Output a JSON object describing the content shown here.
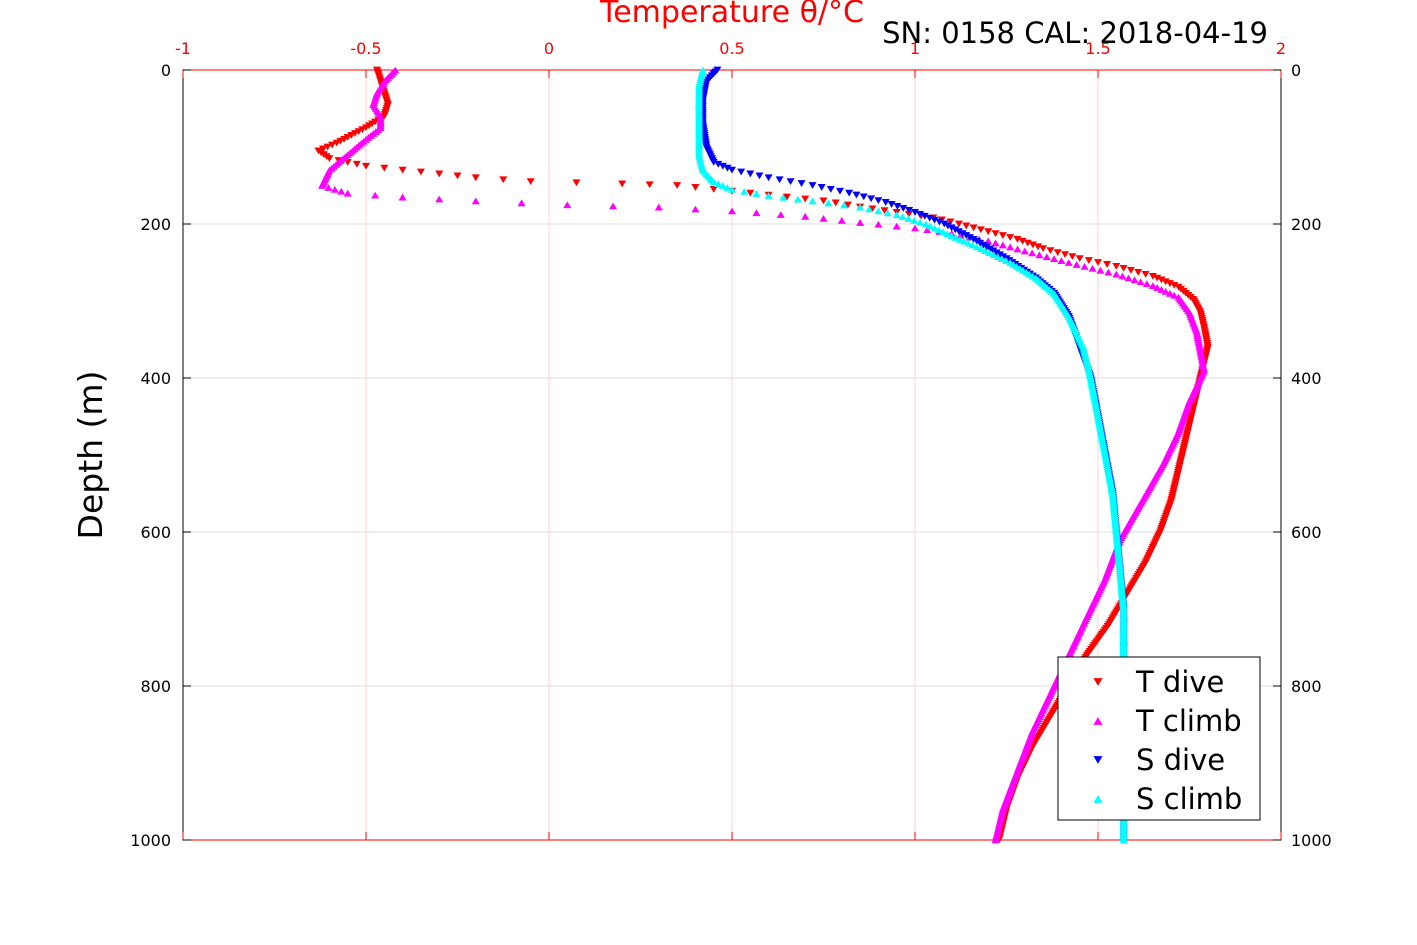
{
  "chart_data": {
    "type": "scatter",
    "title": "Temperature θ/°C",
    "corner_label": "SN: 0158  CAL: 2018-04-19",
    "xlabel": "Temperature θ/°C",
    "ylabel": "Depth (m)",
    "xlim": [
      -1,
      2
    ],
    "ylim": [
      0,
      1000
    ],
    "y_inverted": true,
    "x_axis_position": "top",
    "y_axis_mirrored": "left and right",
    "grid": true,
    "legend_position": "bottom-right",
    "x_ticks": [
      "-1",
      "-0.5",
      "0",
      "0.5",
      "1",
      "1.5",
      "2"
    ],
    "y_ticks": [
      "0",
      "200",
      "400",
      "600",
      "800",
      "1000"
    ],
    "colors": {
      "axis_top": "#ff0000",
      "grid": "#dcdcdc",
      "grid_x": "#ffd0d0"
    },
    "series": [
      {
        "name": "T dive",
        "marker": "triangle-down",
        "color": "#ff0000",
        "points": [
          [
            -0.47,
            0
          ],
          [
            -0.46,
            15
          ],
          [
            -0.45,
            30
          ],
          [
            -0.44,
            45
          ],
          [
            -0.45,
            60
          ],
          [
            -0.5,
            75
          ],
          [
            -0.54,
            85
          ],
          [
            -0.58,
            95
          ],
          [
            -0.63,
            105
          ],
          [
            -0.6,
            115
          ],
          [
            -0.5,
            125
          ],
          [
            -0.4,
            130
          ],
          [
            -0.3,
            135
          ],
          [
            -0.2,
            140
          ],
          [
            -0.05,
            145
          ],
          [
            0.2,
            148
          ],
          [
            0.35,
            150
          ],
          [
            0.45,
            155
          ],
          [
            0.55,
            160
          ],
          [
            0.65,
            165
          ],
          [
            0.75,
            170
          ],
          [
            0.85,
            178
          ],
          [
            0.95,
            185
          ],
          [
            1.05,
            192
          ],
          [
            1.12,
            200
          ],
          [
            1.2,
            210
          ],
          [
            1.28,
            220
          ],
          [
            1.35,
            232
          ],
          [
            1.45,
            245
          ],
          [
            1.55,
            255
          ],
          [
            1.65,
            268
          ],
          [
            1.72,
            282
          ],
          [
            1.76,
            298
          ],
          [
            1.78,
            315
          ],
          [
            1.79,
            335
          ],
          [
            1.8,
            360
          ],
          [
            1.78,
            400
          ],
          [
            1.76,
            440
          ],
          [
            1.74,
            480
          ],
          [
            1.72,
            520
          ],
          [
            1.7,
            560
          ],
          [
            1.67,
            600
          ],
          [
            1.63,
            640
          ],
          [
            1.58,
            680
          ],
          [
            1.53,
            720
          ],
          [
            1.47,
            760
          ],
          [
            1.42,
            800
          ],
          [
            1.37,
            840
          ],
          [
            1.32,
            880
          ],
          [
            1.28,
            920
          ],
          [
            1.25,
            960
          ],
          [
            1.23,
            1000
          ]
        ]
      },
      {
        "name": "T climb",
        "marker": "triangle-up",
        "color": "#ff00ff",
        "points": [
          [
            -0.42,
            0
          ],
          [
            -0.45,
            15
          ],
          [
            -0.47,
            30
          ],
          [
            -0.48,
            45
          ],
          [
            -0.46,
            60
          ],
          [
            -0.46,
            75
          ],
          [
            -0.5,
            90
          ],
          [
            -0.55,
            110
          ],
          [
            -0.6,
            130
          ],
          [
            -0.62,
            150
          ],
          [
            -0.55,
            160
          ],
          [
            -0.4,
            165
          ],
          [
            -0.2,
            170
          ],
          [
            0.05,
            175
          ],
          [
            0.3,
            178
          ],
          [
            0.5,
            183
          ],
          [
            0.7,
            190
          ],
          [
            0.85,
            198
          ],
          [
            1.0,
            205
          ],
          [
            1.1,
            212
          ],
          [
            1.2,
            222
          ],
          [
            1.3,
            235
          ],
          [
            1.42,
            250
          ],
          [
            1.55,
            265
          ],
          [
            1.65,
            280
          ],
          [
            1.72,
            295
          ],
          [
            1.75,
            315
          ],
          [
            1.77,
            340
          ],
          [
            1.78,
            365
          ],
          [
            1.79,
            390
          ],
          [
            1.75,
            430
          ],
          [
            1.72,
            470
          ],
          [
            1.68,
            510
          ],
          [
            1.62,
            560
          ],
          [
            1.56,
            610
          ],
          [
            1.52,
            660
          ],
          [
            1.47,
            710
          ],
          [
            1.42,
            760
          ],
          [
            1.37,
            810
          ],
          [
            1.32,
            860
          ],
          [
            1.28,
            910
          ],
          [
            1.24,
            960
          ],
          [
            1.22,
            1000
          ]
        ]
      },
      {
        "name": "S dive",
        "marker": "triangle-down",
        "color": "#0000ff",
        "points": [
          [
            0.46,
            0
          ],
          [
            0.43,
            15
          ],
          [
            0.42,
            40
          ],
          [
            0.42,
            70
          ],
          [
            0.43,
            100
          ],
          [
            0.45,
            120
          ],
          [
            0.5,
            130
          ],
          [
            0.6,
            140
          ],
          [
            0.72,
            150
          ],
          [
            0.82,
            160
          ],
          [
            0.92,
            172
          ],
          [
            1.0,
            185
          ],
          [
            1.08,
            200
          ],
          [
            1.16,
            220
          ],
          [
            1.25,
            245
          ],
          [
            1.33,
            270
          ],
          [
            1.38,
            290
          ],
          [
            1.42,
            320
          ],
          [
            1.45,
            360
          ],
          [
            1.48,
            400
          ],
          [
            1.5,
            450
          ],
          [
            1.52,
            500
          ],
          [
            1.54,
            550
          ],
          [
            1.55,
            600
          ],
          [
            1.56,
            650
          ],
          [
            1.57,
            700
          ],
          [
            1.57,
            750
          ],
          [
            1.57,
            800
          ],
          [
            1.57,
            850
          ],
          [
            1.57,
            900
          ],
          [
            1.57,
            950
          ],
          [
            1.57,
            1000
          ]
        ]
      },
      {
        "name": "S climb",
        "marker": "triangle-up",
        "color": "#00ffff",
        "points": [
          [
            0.42,
            0
          ],
          [
            0.41,
            20
          ],
          [
            0.41,
            50
          ],
          [
            0.41,
            80
          ],
          [
            0.41,
            110
          ],
          [
            0.42,
            130
          ],
          [
            0.45,
            145
          ],
          [
            0.5,
            155
          ],
          [
            0.6,
            163
          ],
          [
            0.72,
            170
          ],
          [
            0.85,
            178
          ],
          [
            0.95,
            188
          ],
          [
            1.03,
            200
          ],
          [
            1.1,
            215
          ],
          [
            1.18,
            232
          ],
          [
            1.26,
            250
          ],
          [
            1.33,
            270
          ],
          [
            1.38,
            290
          ],
          [
            1.42,
            320
          ],
          [
            1.46,
            360
          ],
          [
            1.48,
            400
          ],
          [
            1.5,
            450
          ],
          [
            1.52,
            500
          ],
          [
            1.54,
            550
          ],
          [
            1.55,
            600
          ],
          [
            1.56,
            650
          ],
          [
            1.57,
            700
          ],
          [
            1.57,
            750
          ],
          [
            1.57,
            800
          ],
          [
            1.57,
            850
          ],
          [
            1.57,
            900
          ],
          [
            1.57,
            950
          ],
          [
            1.57,
            1000
          ]
        ]
      }
    ]
  }
}
